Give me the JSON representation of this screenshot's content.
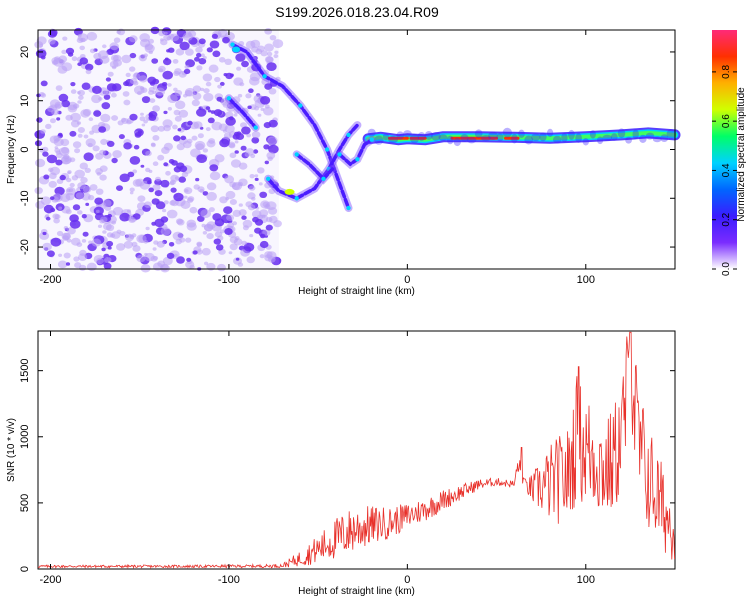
{
  "title": "S199.2026.018.23.04.R09",
  "chart_data": [
    {
      "type": "heatmap",
      "name": "spectrogram",
      "xlabel": "Height of straight line (km)",
      "ylabel": "Frequency (Hz)",
      "xlim": [
        -207,
        150
      ],
      "ylim": [
        -24.5,
        24.5
      ],
      "xticks": [
        -200,
        -100,
        0,
        100
      ],
      "yticks": [
        -20,
        -10,
        0,
        10,
        20
      ],
      "noise_region_x": [
        -207,
        -72
      ],
      "features": [
        {
          "name": "main-carrier",
          "points": [
            [
              -22,
              2.2
            ],
            [
              -15,
              2.5
            ],
            [
              -5,
              2.0
            ],
            [
              0,
              2.2
            ],
            [
              10,
              2.0
            ],
            [
              20,
              2.6
            ],
            [
              40,
              2.6
            ],
            [
              60,
              2.5
            ],
            [
              80,
              2.3
            ],
            [
              100,
              2.6
            ],
            [
              120,
              3.0
            ],
            [
              135,
              3.4
            ],
            [
              150,
              3.0
            ]
          ]
        },
        {
          "name": "upper-branch",
          "points": [
            [
              -98,
              21.5
            ],
            [
              -90,
              20.0
            ],
            [
              -80,
              15.0
            ],
            [
              -70,
              13.0
            ],
            [
              -60,
              9.0
            ],
            [
              -52,
              5.0
            ],
            [
              -45,
              0.0
            ],
            [
              -38,
              -7.0
            ],
            [
              -33,
              -12.0
            ]
          ]
        },
        {
          "name": "mid-branch",
          "points": [
            [
              -100,
              10.5
            ],
            [
              -92,
              7.5
            ],
            [
              -85,
              4.5
            ]
          ]
        },
        {
          "name": "lower-branch",
          "points": [
            [
              -78,
              -6.0
            ],
            [
              -72,
              -8.5
            ],
            [
              -62,
              -10.0
            ],
            [
              -52,
              -8.0
            ],
            [
              -44,
              -4.0
            ],
            [
              -38,
              0.0
            ],
            [
              -33,
              3.0
            ],
            [
              -28,
              5.0
            ]
          ]
        },
        {
          "name": "short-branch",
          "points": [
            [
              -62,
              -1.0
            ],
            [
              -55,
              -3.0
            ],
            [
              -47,
              -6.0
            ],
            [
              -42,
              -4.0
            ]
          ]
        },
        {
          "name": "right-arc",
          "points": [
            [
              -38,
              -1.0
            ],
            [
              -32,
              -3.0
            ],
            [
              -28,
              -2.0
            ],
            [
              -24,
              1.0
            ],
            [
              -20,
              2.0
            ]
          ]
        }
      ]
    },
    {
      "type": "colorbar",
      "name": "amplitude-scale",
      "label": "Normalized spectral amplitude",
      "range": [
        0,
        0.97
      ],
      "ticks": [
        "0.0",
        "0.2",
        "0.4",
        "0.6",
        "0.8"
      ],
      "tick_values": [
        0,
        0.2,
        0.4,
        0.6,
        0.8
      ],
      "colormap": [
        "#ffffff",
        "#7a2cff",
        "#3a1cff",
        "#0066ff",
        "#00d2ff",
        "#00ff66",
        "#d0ff00",
        "#ffb000",
        "#ff3000",
        "#ff2a78"
      ]
    },
    {
      "type": "line",
      "name": "snr-trace",
      "xlabel": "Height of straight line (km)",
      "ylabel": "SNR (10 * v/v)",
      "xlim": [
        -207,
        150
      ],
      "ylim": [
        0,
        1800
      ],
      "xticks": [
        -200,
        -100,
        0,
        100
      ],
      "yticks": [
        0,
        500,
        1000,
        1500
      ],
      "color": "#e8302a",
      "envelope": {
        "x": [
          -207,
          -120,
          -80,
          -70,
          -60,
          -50,
          -40,
          -30,
          -20,
          -10,
          0,
          10,
          20,
          30,
          40,
          50,
          60,
          62,
          66,
          70,
          80,
          90,
          95,
          100,
          105,
          110,
          115,
          120,
          122,
          125,
          130,
          135,
          140,
          145,
          150
        ],
        "mean": [
          20,
          20,
          22,
          25,
          80,
          150,
          230,
          300,
          330,
          350,
          400,
          450,
          520,
          580,
          640,
          660,
          640,
          800,
          640,
          600,
          650,
          700,
          1000,
          900,
          850,
          750,
          800,
          1000,
          1200,
          1500,
          900,
          700,
          550,
          400,
          300
        ],
        "amplitude": [
          10,
          10,
          12,
          15,
          60,
          110,
          160,
          180,
          150,
          120,
          100,
          90,
          80,
          60,
          40,
          30,
          30,
          80,
          40,
          120,
          300,
          380,
          480,
          450,
          420,
          380,
          420,
          450,
          500,
          550,
          480,
          420,
          380,
          300,
          250
        ],
        "peaks": [
          {
            "x": 96,
            "y": 1530
          },
          {
            "x": 125,
            "y": 1790
          },
          {
            "x": 64,
            "y": 920
          }
        ]
      }
    }
  ]
}
